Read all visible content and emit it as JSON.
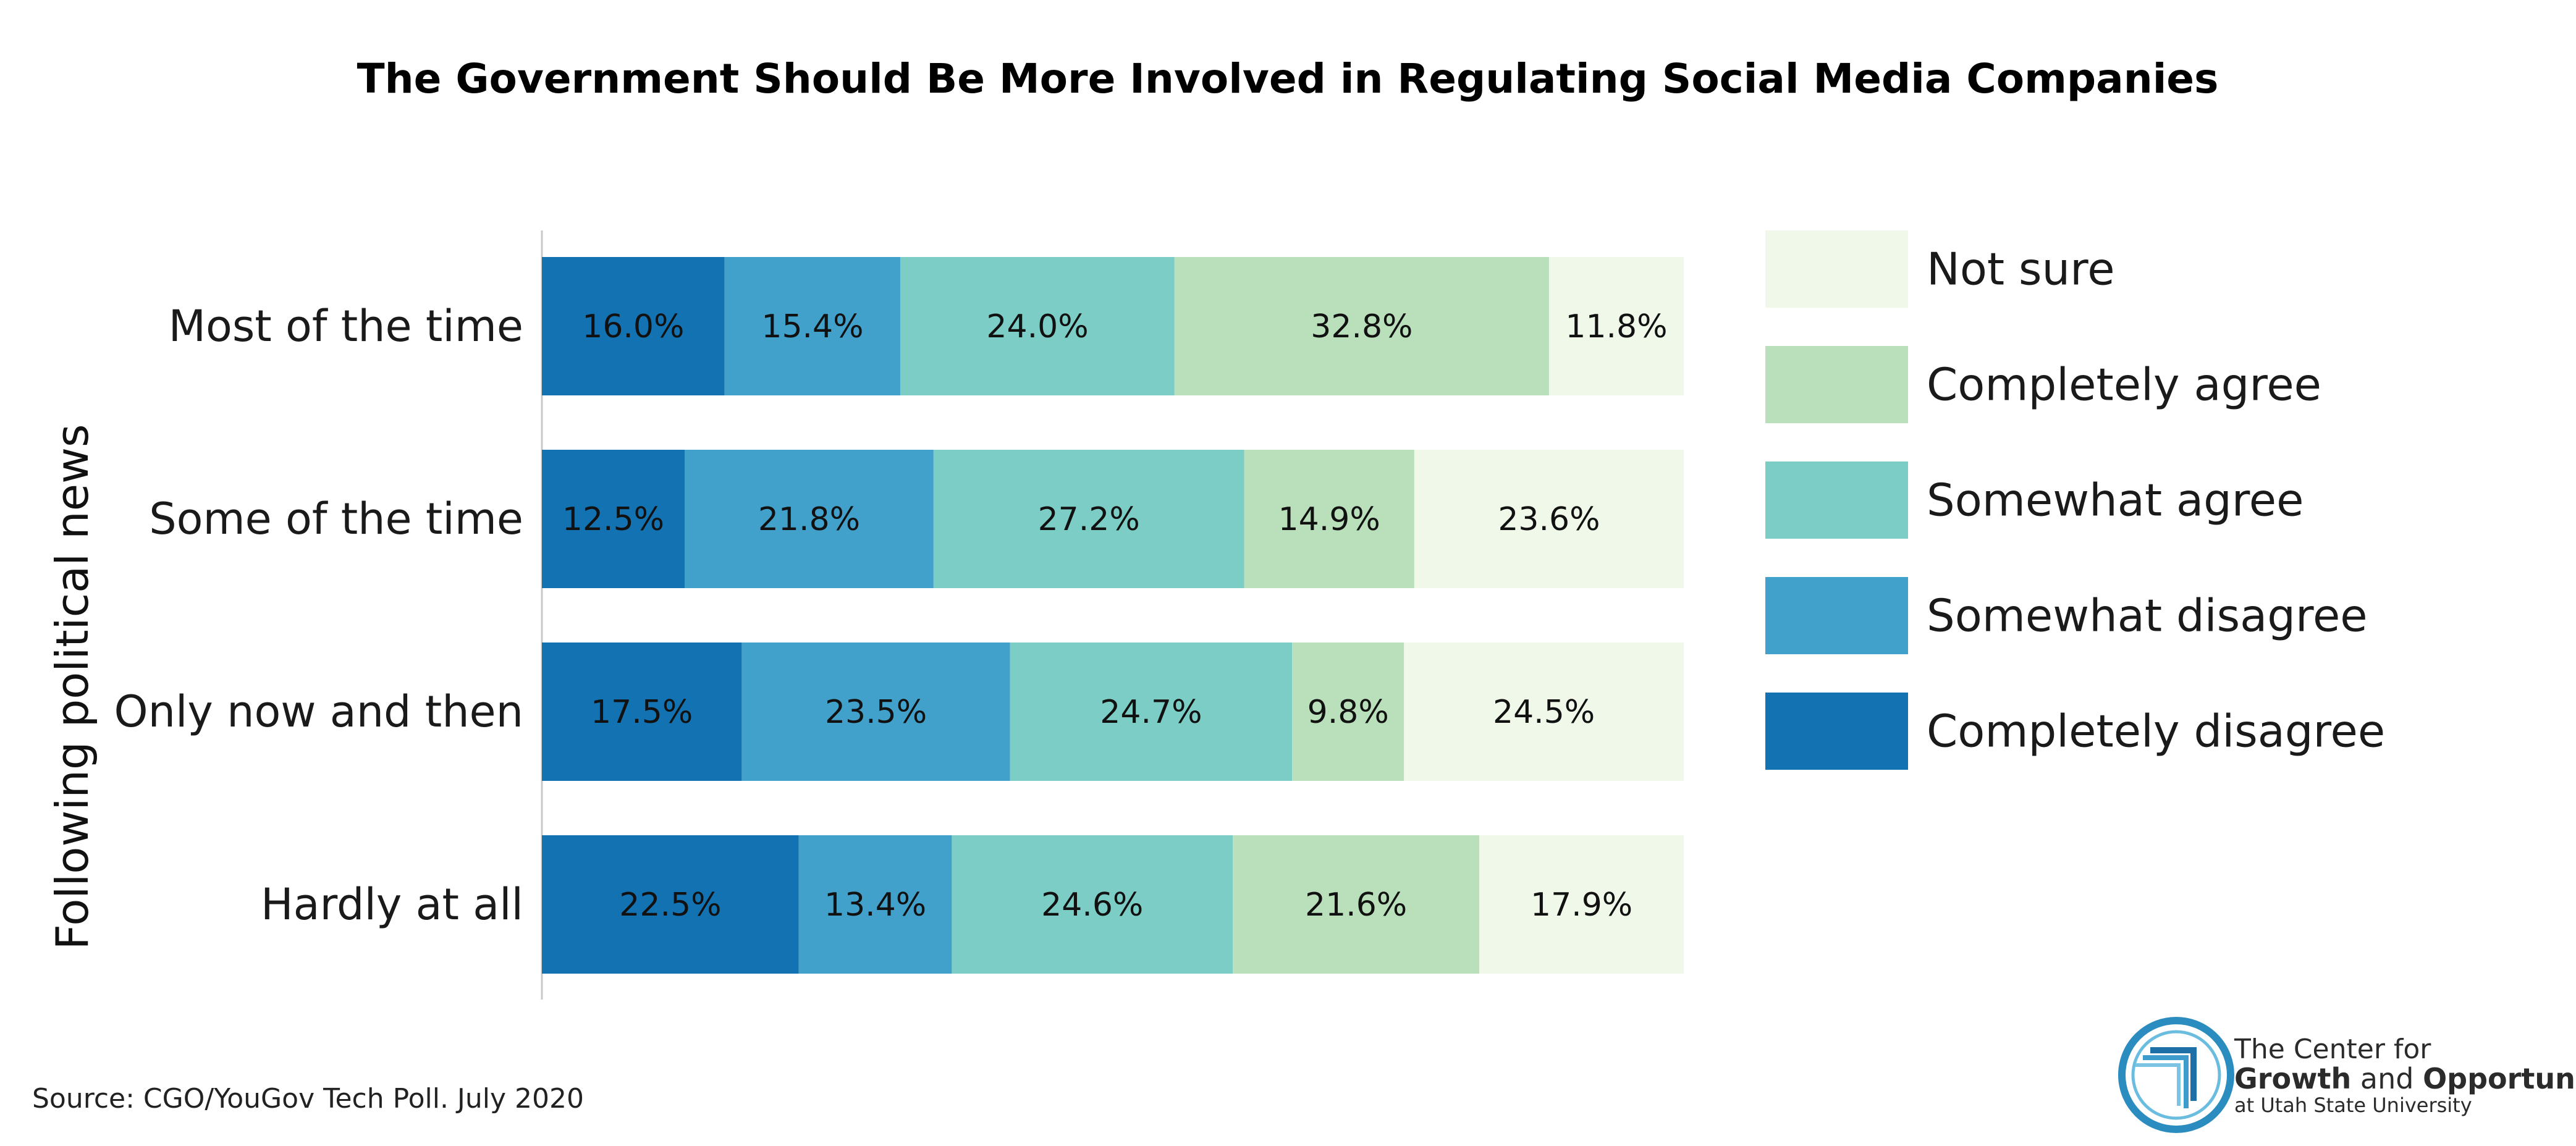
{
  "chart_data": {
    "type": "bar",
    "orientation": "horizontal",
    "stacked": true,
    "title": "The Government Should Be More Involved in Regulating Social Media Companies",
    "ylabel": "Following political news",
    "categories": [
      "Most of the time",
      "Some of the time",
      "Only now and then",
      "Hardly at all"
    ],
    "series": [
      {
        "name": "Completely disagree",
        "color": "#1372b1",
        "values": [
          16.0,
          12.5,
          17.5,
          22.5
        ],
        "labels": [
          "16.0%",
          "12.5%",
          "17.5%",
          "22.5%"
        ]
      },
      {
        "name": "Somewhat disagree",
        "color": "#41a1cb",
        "values": [
          15.4,
          21.8,
          23.5,
          13.4
        ],
        "labels": [
          "15.4%",
          "21.8%",
          "23.5%",
          "13.4%"
        ]
      },
      {
        "name": "Somewhat agree",
        "color": "#7ccdc5",
        "values": [
          24.0,
          27.2,
          24.7,
          24.6
        ],
        "labels": [
          "24.0%",
          "27.2%",
          "24.7%",
          "24.6%"
        ]
      },
      {
        "name": "Completely agree",
        "color": "#b9e0bb",
        "values": [
          32.8,
          14.9,
          9.8,
          21.6
        ],
        "labels": [
          "32.8%",
          "14.9%",
          "9.8%",
          "21.6%"
        ]
      },
      {
        "name": "Not sure",
        "color": "#eff8e9",
        "values": [
          11.8,
          23.6,
          24.5,
          17.9
        ],
        "labels": [
          "11.8%",
          "23.6%",
          "24.5%",
          "17.9%"
        ]
      }
    ],
    "legend_order": [
      "Not sure",
      "Completely agree",
      "Somewhat agree",
      "Somewhat disagree",
      "Completely disagree"
    ],
    "legend_position": "right",
    "xlim": [
      0,
      100
    ],
    "grid": false
  },
  "source": "Source: CGO/YouGov Tech Poll. July 2020",
  "logo": {
    "line1": "The Center for",
    "line2_bold1": "Growth",
    "line2_mid": " and ",
    "line2_bold2": "Opportunity",
    "line3": "at Utah State University",
    "colors": {
      "ring": "#2a8cbf",
      "inner": "#4aa7d0"
    }
  }
}
